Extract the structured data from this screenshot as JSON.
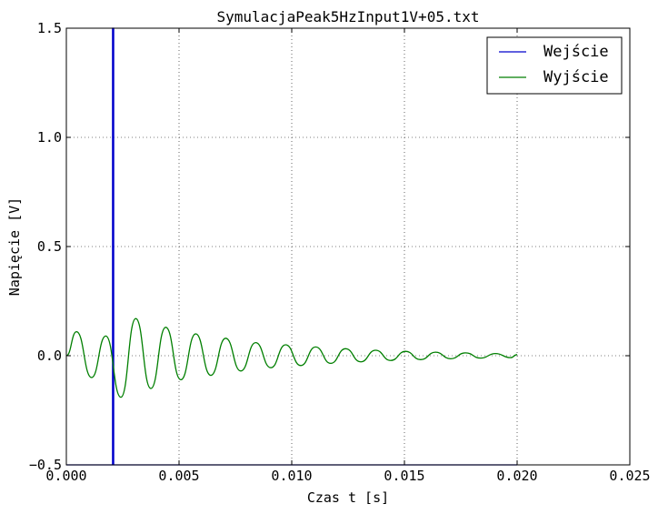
{
  "chart_data": {
    "type": "line",
    "title": "SymulacjaPeak5HzInput1V+05.txt",
    "xlabel": "Czas t [s]",
    "ylabel": "Napięcie [V]",
    "xlim": [
      0,
      0.025
    ],
    "ylim": [
      -0.5,
      1.5
    ],
    "xticks": [
      0.0,
      0.005,
      0.01,
      0.015,
      0.02,
      0.025
    ],
    "xtick_labels": [
      "0.000",
      "0.005",
      "0.010",
      "0.015",
      "0.020",
      "0.025"
    ],
    "yticks": [
      -0.5,
      0.0,
      0.5,
      1.0,
      1.5
    ],
    "ytick_labels": [
      "−0.5",
      "0.0",
      "0.5",
      "1.0",
      "1.5"
    ],
    "grid": true,
    "legend_position": "top-right",
    "series": [
      {
        "name": "Wejście",
        "color": "#0000cc",
        "x": [
          0.0,
          0.00205,
          0.00205,
          0.0021,
          0.0021,
          0.02
        ],
        "y": [
          -0.5,
          -0.5,
          1.5,
          1.5,
          -0.5,
          -0.5
        ]
      },
      {
        "name": "Wyjście",
        "color": "#007f00",
        "x": [
          0.0,
          0.00045,
          0.00112,
          0.00175,
          0.00242,
          0.00308,
          0.00375,
          0.00441,
          0.00508,
          0.00574,
          0.00641,
          0.00707,
          0.00774,
          0.0084,
          0.00907,
          0.00973,
          0.0104,
          0.01106,
          0.01173,
          0.01239,
          0.01306,
          0.01372,
          0.01439,
          0.01505,
          0.01572,
          0.01638,
          0.01705,
          0.01771,
          0.01838,
          0.01904,
          0.01971,
          0.02
        ],
        "y": [
          0.0,
          0.11,
          -0.1,
          0.09,
          -0.19,
          0.17,
          -0.15,
          0.13,
          -0.11,
          0.1,
          -0.09,
          0.08,
          -0.07,
          0.06,
          -0.055,
          0.05,
          -0.045,
          0.04,
          -0.035,
          0.032,
          -0.028,
          0.025,
          -0.022,
          0.02,
          -0.018,
          0.016,
          -0.014,
          0.013,
          -0.011,
          0.01,
          -0.009,
          0.005
        ]
      }
    ]
  }
}
